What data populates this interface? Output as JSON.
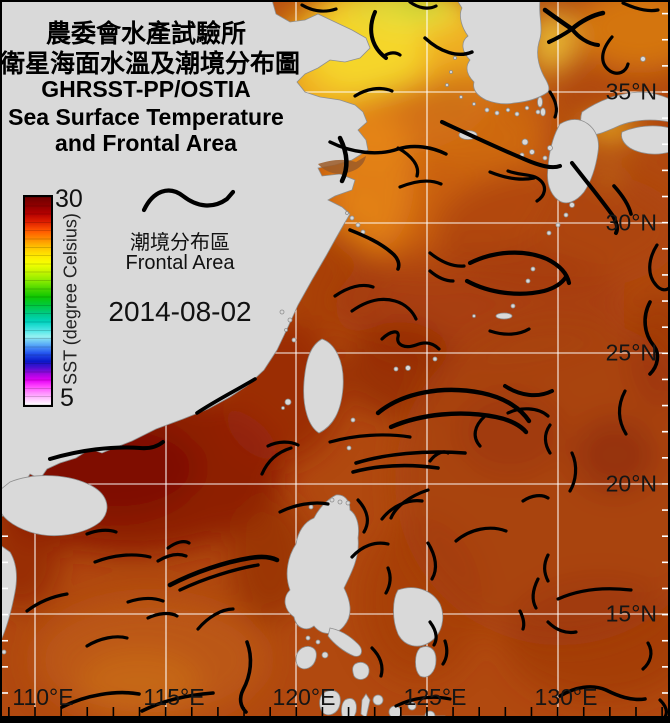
{
  "header": {
    "title_line1": "農委會水產試驗所",
    "title_line2": "衛星海面水溫及潮境分布圖",
    "title_line3": "GHRSST-PP/OSTIA",
    "title_line4": "Sea Surface Temperature",
    "title_line5": "and Frontal Area"
  },
  "legend": {
    "frontal_zh": "潮境分布區",
    "frontal_en": "Frontal Area",
    "date": "2014-08-02"
  },
  "colorbar": {
    "axis_label": "SST (degree Celsius)",
    "max": "30",
    "min": "5",
    "stops": [
      [
        0,
        "#700000"
      ],
      [
        4,
        "#8e0000"
      ],
      [
        8,
        "#b40000"
      ],
      [
        12,
        "#de1e00"
      ],
      [
        16,
        "#ff5400"
      ],
      [
        20,
        "#ff8a00"
      ],
      [
        24,
        "#ffc000"
      ],
      [
        28,
        "#ffe600"
      ],
      [
        32,
        "#f6ff00"
      ],
      [
        36,
        "#c6f600"
      ],
      [
        40,
        "#8eec00"
      ],
      [
        44,
        "#4cd800"
      ],
      [
        48,
        "#0ec800"
      ],
      [
        52,
        "#00c93c"
      ],
      [
        56,
        "#00cb85"
      ],
      [
        60,
        "#00d4c0"
      ],
      [
        64,
        "#4ae6e6"
      ],
      [
        67,
        "#93f2f0"
      ],
      [
        71,
        "#58aaf8"
      ],
      [
        75,
        "#2456f0"
      ],
      [
        79,
        "#0a18c8"
      ],
      [
        82,
        "#4a10d0"
      ],
      [
        85,
        "#a008e0"
      ],
      [
        88,
        "#e400f4"
      ],
      [
        91,
        "#ff46ff"
      ],
      [
        94,
        "#ff8cff"
      ],
      [
        97,
        "#ffc6ff"
      ],
      [
        100,
        "#ffffff"
      ]
    ]
  },
  "axes": {
    "lat_labels": [
      "35°N",
      "30°N",
      "25°N",
      "20°N",
      "15°N"
    ],
    "lon_labels": [
      "110°E",
      "115°E",
      "120°E",
      "125°E",
      "130°E"
    ]
  },
  "map": {
    "land_color": "#d9d9d9",
    "coast_color": "#8f8f8f",
    "grid_color": "#ffffff",
    "front_color": "#000000",
    "frontal_paths": [
      [
        "M375,12 C368,28 370,46 386,58",
        4
      ],
      [
        "M425,38 C440,52 458,58 472,52",
        3.4
      ],
      [
        "M302,5 C312,11 324,13 336,9",
        3.2
      ],
      [
        "M410,2 C418,8 428,10 436,6",
        3.2
      ],
      [
        "M330,142 C352,153 378,156 398,149 C414,144 432,147 446,154",
        3.4
      ],
      [
        "M355,96 C366,89 380,86 392,91",
        3.2
      ],
      [
        "M442,122 C470,135 500,149 524,159 C540,166 552,169 560,166",
        4
      ],
      [
        "M490,172 C505,178 520,181 534,178",
        3.2
      ],
      [
        "M545,10 C556,18 566,25 572,29",
        4.5
      ],
      [
        "M572,29 C581,21 593,15 603,13",
        4.5
      ],
      [
        "M572,29 C578,37 588,44 598,45",
        4
      ],
      [
        "M549,42 C558,38 566,33 572,29",
        4
      ],
      [
        "M623,3 C636,9 648,12 658,10",
        3.2
      ],
      [
        "M612,37 C601,50 599,63 610,71 C618,76 626,72 628,64",
        3.2
      ],
      [
        "M550,92 C556,101 558,110 555,117",
        3.2
      ],
      [
        "M340,138 C347,152 349,167 342,181",
        4.5
      ],
      [
        "M350,230 C365,236 381,243 392,253 C398,258 400,264 398,269",
        3.6
      ],
      [
        "M398,148 C412,156 420,166 417,176",
        3.2
      ],
      [
        "M400,187 C415,181 430,179 441,184",
        3.2
      ],
      [
        "M430,253 C440,261 452,267 464,266",
        3.2
      ],
      [
        "M508,171 C521,176 533,173 541,181 C547,187 545,196 537,201",
        3.2
      ],
      [
        "M572,163 C586,181 601,199 613,216 C617,223 618,229 616,233",
        4
      ],
      [
        "M614,186 C623,196 629,206 631,214",
        3.6
      ],
      [
        "M657,245 C648,259 647,275 656,285 C661,291 667,291 670,287",
        3.2
      ],
      [
        "M470,263 C494,251 524,249 547,259 C559,265 567,273 569,283",
        4.2
      ],
      [
        "M467,281 C489,293 519,297 544,291 C555,288 562,283 566,277",
        4.2
      ],
      [
        "M490,331 C505,336 519,335 529,329",
        3.2
      ],
      [
        "M430,271 C437,277 445,281 453,281",
        3.2
      ],
      [
        "M650,302 C642,317 644,334 654,346 C660,354 658,366 650,374",
        3.6
      ],
      [
        "M335,296 C348,287 362,283 373,287",
        3.2
      ],
      [
        "M352,311 C366,301 381,297 395,301 C406,304 413,312 416,319",
        3.2
      ],
      [
        "M382,339 C390,331 400,329 398,337 C396,345 405,349 416,345 C426,341 433,343 439,349",
        3.2
      ],
      [
        "M378,413 C402,393 442,385 482,393 C506,398 521,409 529,421",
        4.4
      ],
      [
        "M391,427 C421,414 461,410 496,417 C511,420 521,426 526,432",
        4.4
      ],
      [
        "M262,474 C268,460 278,452 291,448",
        3.2
      ],
      [
        "M356,463 C385,454 425,450 465,453",
        3.6
      ],
      [
        "M353,472 C380,465 410,464 438,468",
        3.6
      ],
      [
        "M330,442 C355,435 385,433 410,437",
        3.2
      ],
      [
        "M268,446 C278,441 290,441 298,445",
        3.2
      ],
      [
        "M197,413 C215,401 235,391 255,379",
        3.6
      ],
      [
        "M50,459 C80,450 112,446 140,448 C151,449 158,446 163,442",
        4
      ],
      [
        "M87,534 C97,530 108,529 116,532",
        3.2
      ],
      [
        "M95,562 C113,555 133,553 150,557",
        3.2
      ],
      [
        "M158,561 C168,555 178,553 186,556",
        3.2
      ],
      [
        "M168,548 C176,542 184,540 189,543",
        3.2
      ],
      [
        "M170,585 C195,572 225,562 250,558 C262,556 271,557 277,560",
        4.6
      ],
      [
        "M180,590 C205,578 235,569 258,565",
        3.4
      ],
      [
        "M27,611 C40,601 55,596 67,594",
        3.2
      ],
      [
        "M128,602 C140,598 152,597 163,601",
        3.2
      ],
      [
        "M148,618 C158,613 170,612 177,616",
        3.2
      ],
      [
        "M87,646 C100,638 116,635 127,638",
        3.2
      ],
      [
        "M62,707 C86,695 116,690 139,694",
        3.6
      ],
      [
        "M142,711 C162,701 187,695 213,693",
        3.6
      ],
      [
        "M198,629 C208,617 222,609 233,609",
        3.2
      ],
      [
        "M247,642 C253,658 251,675 243,690 C239,698 240,706 246,712",
        3.6
      ],
      [
        "M280,512 C294,505 313,501 328,504",
        3.2
      ],
      [
        "M358,500 C368,511 370,522 364,532",
        3.2
      ],
      [
        "M428,490 C410,496 396,506 391,518",
        3.2
      ],
      [
        "M382,519 C392,506 408,499 422,501",
        3.2
      ],
      [
        "M352,557 C362,546 375,541 388,544",
        3.2
      ],
      [
        "M388,568 C392,578 390,586 386,593",
        3.2
      ],
      [
        "M428,543 C436,556 438,569 432,579",
        3.2
      ],
      [
        "M456,541 C470,529 490,525 506,531",
        3.2
      ],
      [
        "M523,501 C532,495 542,494 548,498",
        3.2
      ],
      [
        "M505,386 C520,396 538,398 552,391",
        4
      ],
      [
        "M485,416 C474,426 472,437 480,446",
        3.2
      ],
      [
        "M508,413 C520,407 538,407 548,416",
        3.2
      ],
      [
        "M550,425 C543,435 545,445 550,453",
        3.2
      ],
      [
        "M572,453 C578,466 576,481 570,491",
        3.2
      ],
      [
        "M625,391 C617,406 618,421 626,434",
        3.2
      ],
      [
        "M430,461 C436,453 444,450 448,453",
        3.2
      ],
      [
        "M548,555 C543,565 544,573 548,581",
        3.2
      ],
      [
        "M538,579 C532,591 532,601 536,608",
        3.2
      ],
      [
        "M558,599 C580,589 605,587 631,590",
        3.2
      ],
      [
        "M548,622 C556,630 566,634 576,632",
        3.2
      ],
      [
        "M430,622 C436,630 438,638 434,645",
        3.2
      ],
      [
        "M560,696 C575,687 592,684 606,690 C618,696 631,701 645,699",
        3.6
      ],
      [
        "M648,643 C654,653 650,663 643,669",
        3.2
      ],
      [
        "M660,700 C666,706 668,712 665,717",
        3.2
      ],
      [
        "M445,641 C448,650 447,658 443,664",
        3.2
      ],
      [
        "M372,648 C380,656 384,666 381,676",
        3.2
      ],
      [
        "M396,706 C412,698 432,695 450,699",
        3.2
      ],
      [
        "M384,56 C390,52 396,52 400,55",
        3.2
      ],
      [
        "M520,611 C523,617 525,623 523,629",
        3.2
      ]
    ]
  }
}
